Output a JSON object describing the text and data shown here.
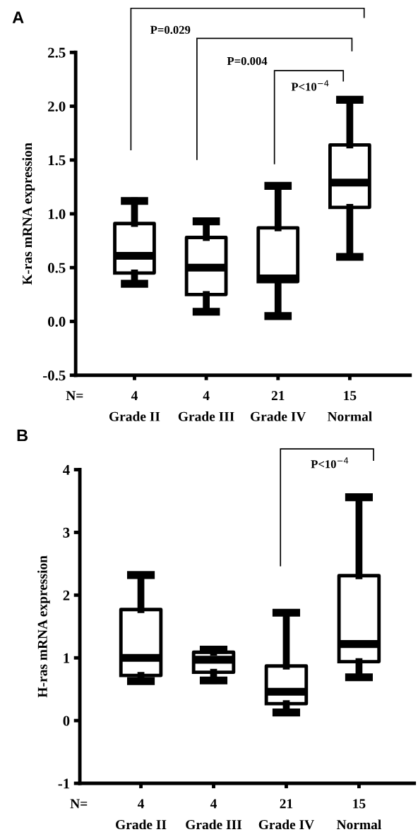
{
  "chart_data": [
    {
      "type": "box",
      "title": "A",
      "ylabel": "K-ras mRNA expression",
      "categories": [
        "Grade II",
        "Grade III",
        "Grade IV",
        "Normal"
      ],
      "boxes": [
        {
          "low": 0.35,
          "q1": 0.45,
          "median": 0.61,
          "q3": 0.91,
          "high": 1.12
        },
        {
          "low": 0.09,
          "q1": 0.25,
          "median": 0.5,
          "q3": 0.78,
          "high": 0.93
        },
        {
          "low": 0.05,
          "q1": 0.37,
          "median": 0.4,
          "q3": 0.87,
          "high": 1.26
        },
        {
          "low": 0.6,
          "q1": 1.06,
          "median": 1.29,
          "q3": 1.64,
          "high": 2.06
        }
      ],
      "ylim": [
        -0.5,
        2.5
      ],
      "yticks": [
        {
          "value": -0.5,
          "label": "-0.5"
        },
        {
          "value": 0,
          "label": "0.0"
        },
        {
          "value": 0.5,
          "label": "0.5"
        },
        {
          "value": 1,
          "label": "1.0"
        },
        {
          "value": 1.5,
          "label": "1.5"
        },
        {
          "value": 2,
          "label": "2.0"
        },
        {
          "value": 2.5,
          "label": "2.5"
        }
      ],
      "grid": false,
      "legend": false,
      "annotations": [
        "P=0.029",
        "P=0.004",
        "P<10$^{−4}$",
        "N=",
        {
          "text": "4",
          "x": "Grade II"
        },
        {
          "text": "4",
          "x": "Grade III"
        },
        {
          "text": "21",
          "x": "Grade IV"
        },
        {
          "text": "15",
          "x": "Normal"
        }
      ]
    },
    {
      "type": "box",
      "title": "B",
      "ylabel": "H-ras mRNA expression",
      "categories": [
        "Grade II",
        "Grade III",
        "Grade IV",
        "Normal"
      ],
      "boxes": [
        {
          "low": 0.63,
          "q1": 0.72,
          "median": 1.0,
          "q3": 1.77,
          "high": 2.32
        },
        {
          "low": 0.64,
          "q1": 0.77,
          "median": 0.97,
          "q3": 1.09,
          "high": 1.13
        },
        {
          "low": 0.13,
          "q1": 0.27,
          "median": 0.46,
          "q3": 0.87,
          "high": 1.72
        },
        {
          "low": 0.69,
          "q1": 0.94,
          "median": 1.22,
          "q3": 2.31,
          "high": 3.56
        }
      ],
      "ylim": [
        -1,
        4
      ],
      "yticks": [
        -1,
        0,
        1,
        2,
        3,
        4
      ],
      "grid": false,
      "legend": false,
      "annotations": [
        "P<10$^{−4}$",
        "N=",
        {
          "text": "4",
          "x": "Grade II"
        },
        {
          "text": "4",
          "x": "Grade III"
        },
        {
          "text": "21",
          "x": "Grade IV"
        },
        {
          "text": "15",
          "x": "Normal"
        }
      ]
    }
  ]
}
